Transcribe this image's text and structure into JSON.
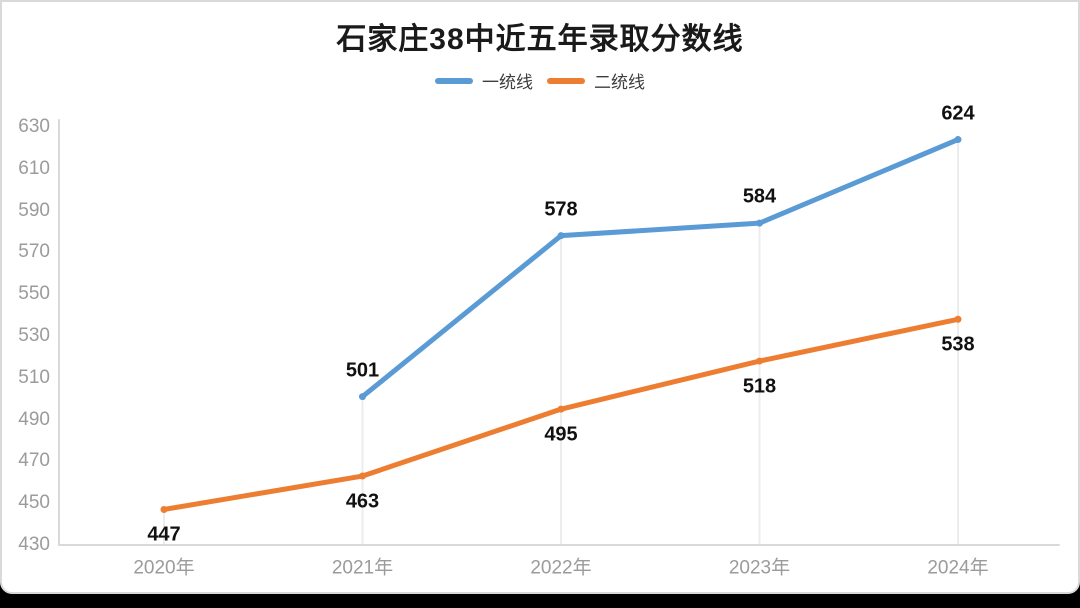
{
  "card": {
    "background": "#ffffff",
    "border_color": "#d9d9d9",
    "outer_background": "#000000"
  },
  "chart_data": {
    "type": "line",
    "title": "石家庄38中近五年录取分数线",
    "categories": [
      "2020年",
      "2021年",
      "2022年",
      "2023年",
      "2024年"
    ],
    "series": [
      {
        "name": "一统线",
        "color": "#5B9BD5",
        "values": [
          null,
          501,
          578,
          584,
          624
        ]
      },
      {
        "name": "二统线",
        "color": "#ED7D31",
        "values": [
          447,
          463,
          495,
          518,
          538
        ]
      }
    ],
    "ylim": [
      430,
      630
    ],
    "yticks": [
      430,
      450,
      470,
      490,
      510,
      530,
      550,
      570,
      590,
      610,
      630
    ],
    "xlabel": "",
    "ylabel": "",
    "legend_position": "top",
    "grid": {
      "vertical_droplines": true,
      "horizontal_gridlines": false
    },
    "style_colors": {
      "axis_line": "#D9D9D9",
      "dropline": "#ECECEC",
      "tick_text": "#9B9B9B",
      "data_label_text": "#111111"
    }
  }
}
